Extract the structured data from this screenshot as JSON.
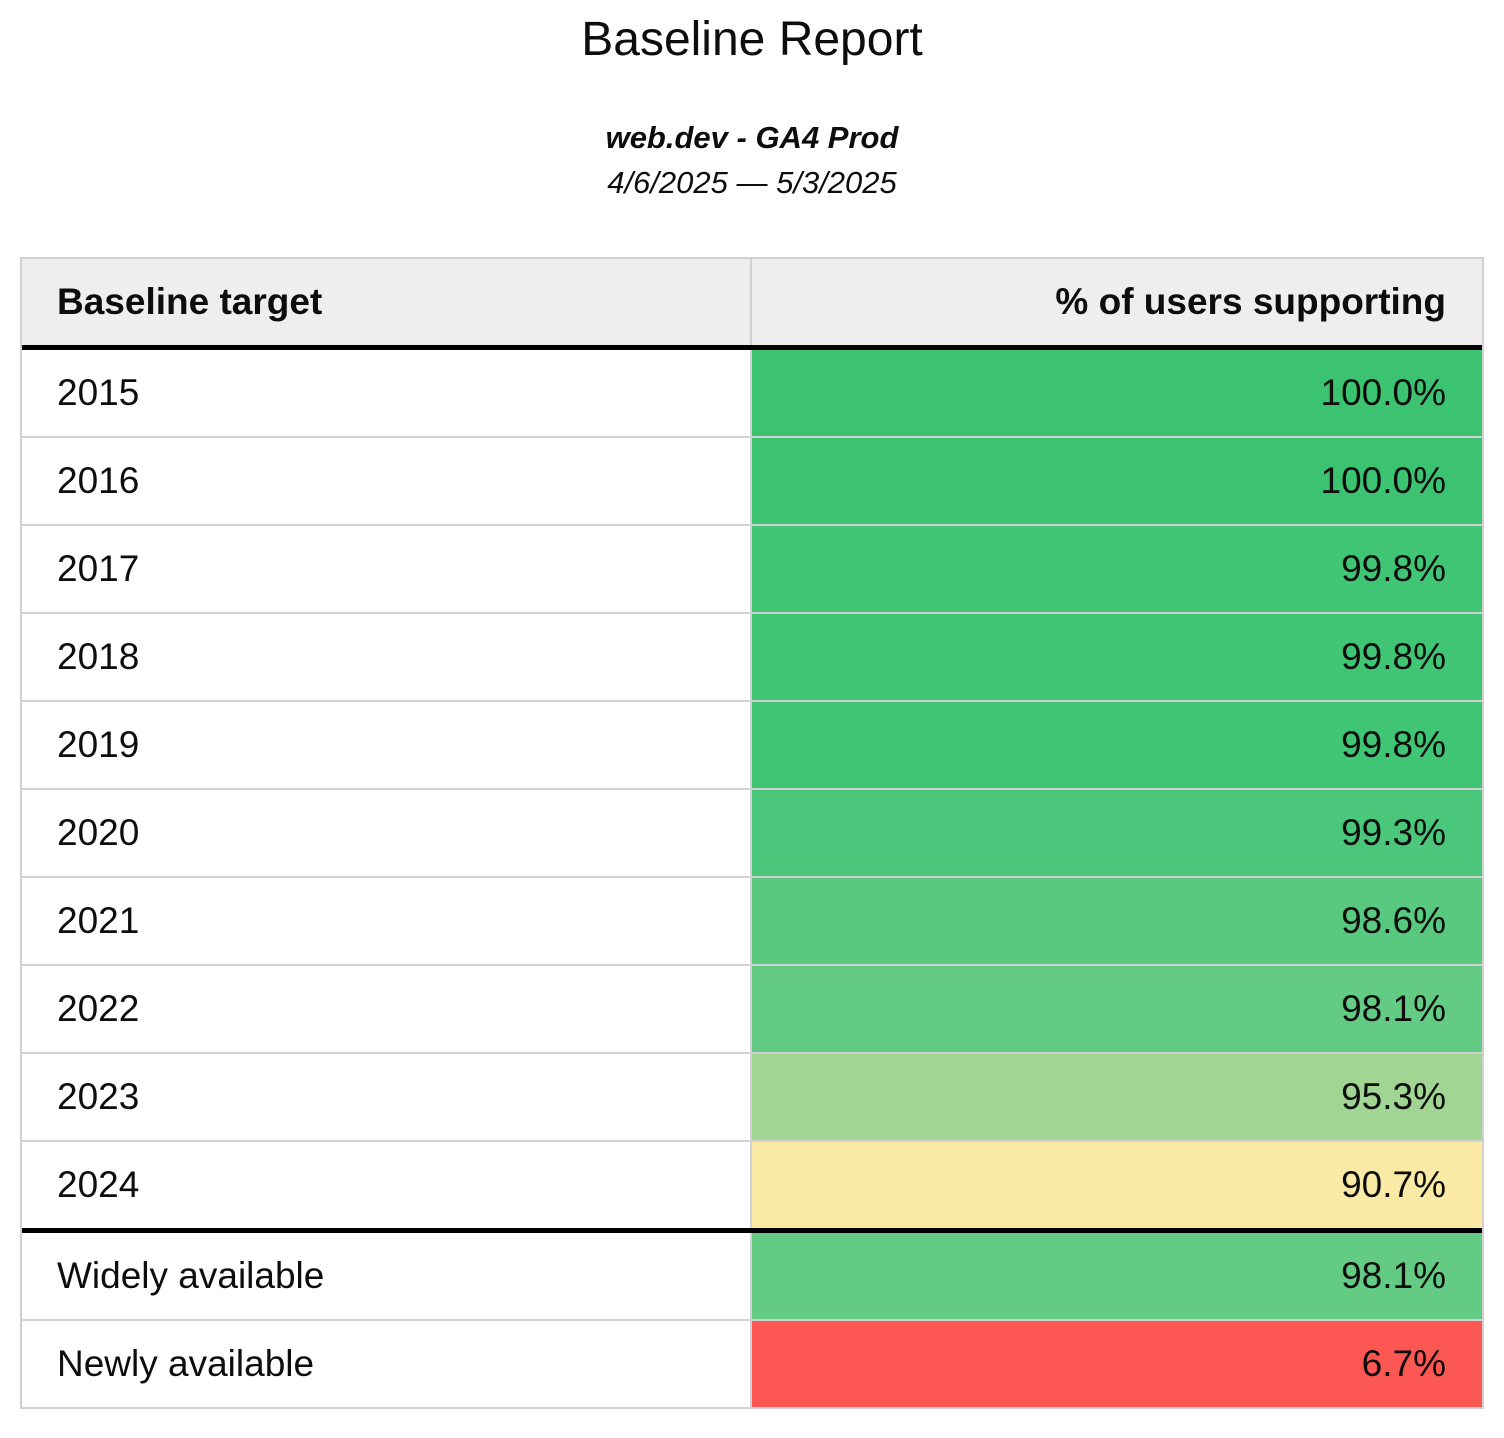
{
  "report": {
    "title": "Baseline Report",
    "subtitle": "web.dev - GA4 Prod",
    "date_range": "4/6/2025 — 5/3/2025"
  },
  "table": {
    "header": {
      "target_label": "Baseline target",
      "value_label": "% of users supporting"
    },
    "year_rows": [
      {
        "target": "2015",
        "value": "100.0%",
        "color": "#3cc371"
      },
      {
        "target": "2016",
        "value": "100.0%",
        "color": "#3cc371"
      },
      {
        "target": "2017",
        "value": "99.8%",
        "color": "#40c574"
      },
      {
        "target": "2018",
        "value": "99.8%",
        "color": "#40c574"
      },
      {
        "target": "2019",
        "value": "99.8%",
        "color": "#40c574"
      },
      {
        "target": "2020",
        "value": "99.3%",
        "color": "#4ac77a"
      },
      {
        "target": "2021",
        "value": "98.6%",
        "color": "#58c97f"
      },
      {
        "target": "2022",
        "value": "98.1%",
        "color": "#63cb84"
      },
      {
        "target": "2023",
        "value": "95.3%",
        "color": "#a0d593"
      },
      {
        "target": "2024",
        "value": "90.7%",
        "color": "#fbe9a6"
      }
    ],
    "summary_rows": [
      {
        "target": "Widely available",
        "value": "98.1%",
        "color": "#63cb84"
      },
      {
        "target": "Newly available",
        "value": "6.7%",
        "color": "#fd5753"
      }
    ],
    "colors": {
      "header_bg": "#eeeeee",
      "grid_border": "#d1d1d1",
      "section_border": "#000000"
    }
  },
  "chart_data": {
    "type": "table",
    "title": "Baseline Report",
    "subtitle": "web.dev - GA4 Prod",
    "date_range": "4/6/2025 — 5/3/2025",
    "columns": [
      "Baseline target",
      "% of users supporting"
    ],
    "rows": [
      [
        "2015",
        100.0
      ],
      [
        "2016",
        100.0
      ],
      [
        "2017",
        99.8
      ],
      [
        "2018",
        99.8
      ],
      [
        "2019",
        99.8
      ],
      [
        "2020",
        99.3
      ],
      [
        "2021",
        98.6
      ],
      [
        "2022",
        98.1
      ],
      [
        "2023",
        95.3
      ],
      [
        "2024",
        90.7
      ],
      [
        "Widely available",
        98.1
      ],
      [
        "Newly available",
        6.7
      ]
    ],
    "value_format": "percent_one_decimal",
    "color_scale": {
      "style": "red-yellow-green conditional fill on value column",
      "examples": {
        "100.0": "#3cc371",
        "95.3": "#a0d593",
        "90.7": "#fbe9a6",
        "6.7": "#fd5753"
      }
    }
  }
}
